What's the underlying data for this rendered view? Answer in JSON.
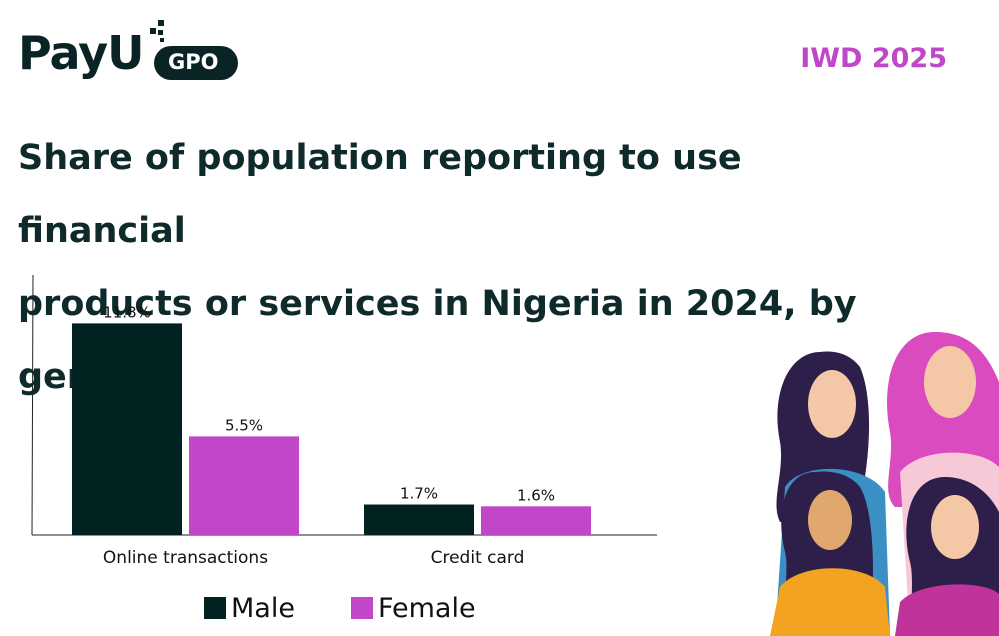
{
  "brand": {
    "logo_text": "PayU",
    "logo_badge": "GPO"
  },
  "tagline": "IWD 2025",
  "title_line1": "Share of population reporting to use financial",
  "title_line2": "products or services in Nigeria in 2024, by gender",
  "colors": {
    "male": "#022222",
    "female": "#c048c8",
    "accent": "#c048c8"
  },
  "chart_data": {
    "type": "bar",
    "categories": [
      "Online transactions",
      "Credit card"
    ],
    "series": [
      {
        "name": "Male",
        "values": [
          11.8,
          1.7
        ],
        "labels": [
          "11.8%",
          "1.7%"
        ],
        "color": "#022222"
      },
      {
        "name": "Female",
        "values": [
          5.5,
          1.6
        ],
        "labels": [
          "5.5%",
          "1.6%"
        ],
        "color": "#c048c8"
      }
    ],
    "ylim": [
      0,
      14.5
    ],
    "grid": false,
    "legend": "bottom"
  },
  "legend": {
    "male": "Male",
    "female": "Female"
  }
}
